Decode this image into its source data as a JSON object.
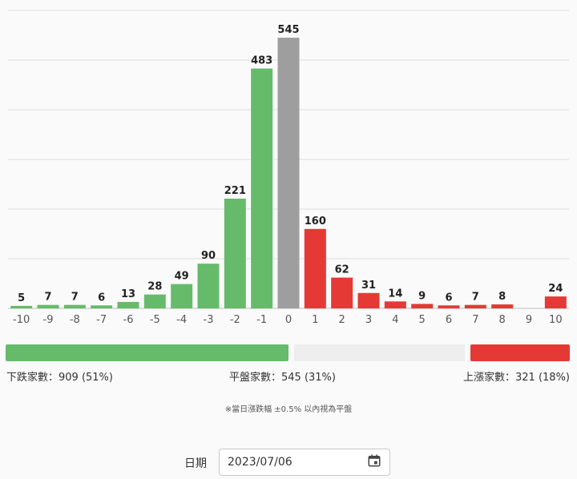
{
  "chart_data": {
    "type": "bar",
    "categories": [
      "-10",
      "-9",
      "-8",
      "-7",
      "-6",
      "-5",
      "-4",
      "-3",
      "-2",
      "-1",
      "0",
      "1",
      "2",
      "3",
      "4",
      "5",
      "6",
      "7",
      "8",
      "9",
      "10"
    ],
    "values": [
      5,
      7,
      7,
      6,
      13,
      28,
      49,
      90,
      221,
      483,
      545,
      160,
      62,
      31,
      14,
      9,
      6,
      7,
      8,
      0,
      24
    ],
    "ylim": [
      0,
      600
    ],
    "grid": true,
    "colors": {
      "down": "#66bb6a",
      "flat": "#9e9e9e",
      "up": "#e53935"
    }
  },
  "summary": {
    "down_text": "下跌家數：909 (51%)",
    "flat_text": "平盤家數：545 (31%)",
    "up_text": "上漲家數：321 (18%)",
    "down_color": "#66bb6a",
    "flat_color": "#eeeeee",
    "up_color": "#e53935"
  },
  "note": "※當日漲跌幅 ±0.5% 以內視為平盤",
  "date_filter": {
    "label": "日期",
    "value": "2023/07/06",
    "icon": "calendar-icon"
  }
}
